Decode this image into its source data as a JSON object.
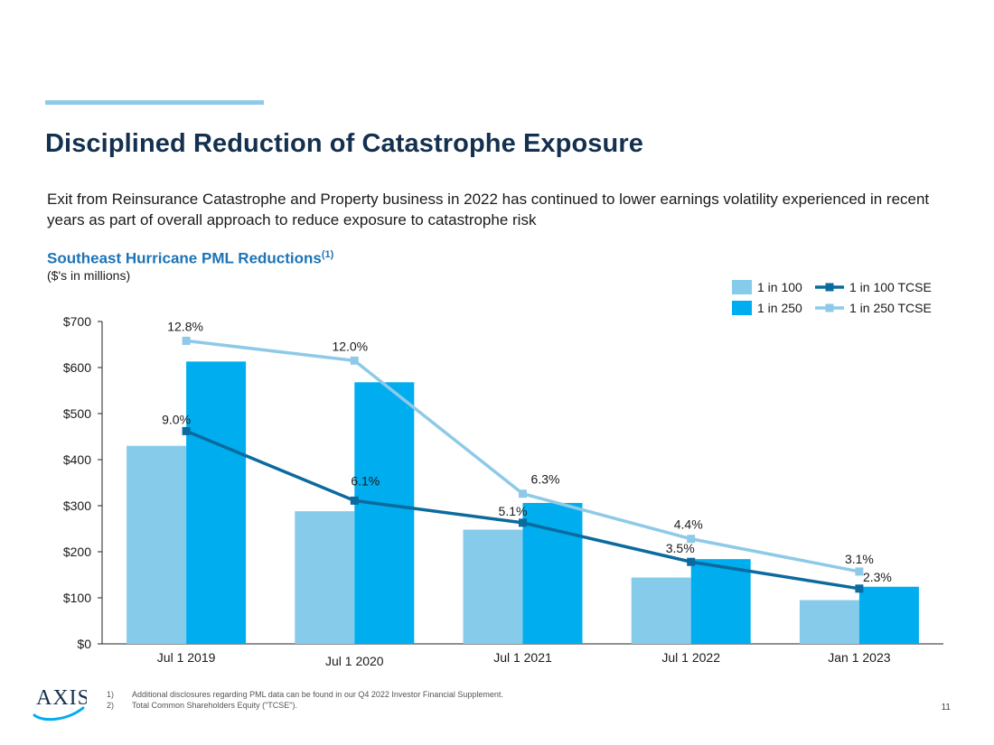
{
  "header": {
    "title": "Disciplined Reduction of Catastrophe Exposure",
    "subtitle": "Exit from Reinsurance Catastrophe  and Property business in 2022 has continued to lower earnings volatility experienced in recent years as part of overall approach to reduce exposure to catastrophe risk"
  },
  "colors": {
    "accent_rule": "#8ecae8",
    "title": "#14304f",
    "chart_heading": "#1c74b6",
    "bar_1in100": "#87cbeb",
    "bar_1in250": "#00adef",
    "line_1in100_tcse": "#0b6a9e",
    "line_1in250_tcse": "#8ecae8"
  },
  "chart_heading": {
    "text": "Southeast Hurricane PML Reductions",
    "footnote_ref": "(1)",
    "units": "($'s in millions)"
  },
  "chart_data": {
    "type": "bar",
    "categories": [
      "Jul 1 2019",
      "Jul 1 2020",
      "Jul 1 2021",
      "Jul 1 2022",
      "Jan 1 2023"
    ],
    "series": [
      {
        "name": "1 in 100",
        "kind": "bar",
        "values": [
          430,
          288,
          248,
          144,
          95
        ]
      },
      {
        "name": "1 in 250",
        "kind": "bar",
        "values": [
          613,
          568,
          306,
          184,
          124
        ]
      }
    ],
    "line_series": [
      {
        "name": "1 in 100 TCSE",
        "y_position_musd": [
          462,
          311,
          263,
          178,
          120
        ],
        "labels": [
          "9.0%",
          "6.1%",
          "5.1%",
          "3.5%",
          "2.3%"
        ]
      },
      {
        "name": "1 in 250 TCSE",
        "y_position_musd": [
          658,
          615,
          326,
          228,
          157
        ],
        "labels": [
          "12.8%",
          "12.0%",
          "6.3%",
          "4.4%",
          "3.1%"
        ]
      }
    ],
    "ylim": [
      0,
      700
    ],
    "y_ticks": [
      0,
      100,
      200,
      300,
      400,
      500,
      600,
      700
    ],
    "y_tick_labels": [
      "$0",
      "$100",
      "$200",
      "$300",
      "$400",
      "$500",
      "$600",
      "$700"
    ],
    "legend": [
      "1 in 100",
      "1 in 250",
      "1 in 100 TCSE",
      "1 in 250 TCSE"
    ],
    "legend_position": "top-right",
    "grid": false
  },
  "footnotes": [
    {
      "num": "1)",
      "text": "Additional disclosures regarding PML data can be found in our Q4 2022 Investor Financial Supplement."
    },
    {
      "num": "2)",
      "text": "Total Common Shareholders Equity (\"TCSE\")."
    }
  ],
  "page_number": "11",
  "logo": {
    "text": "AXIS",
    "icon": "axis-logo-icon"
  }
}
